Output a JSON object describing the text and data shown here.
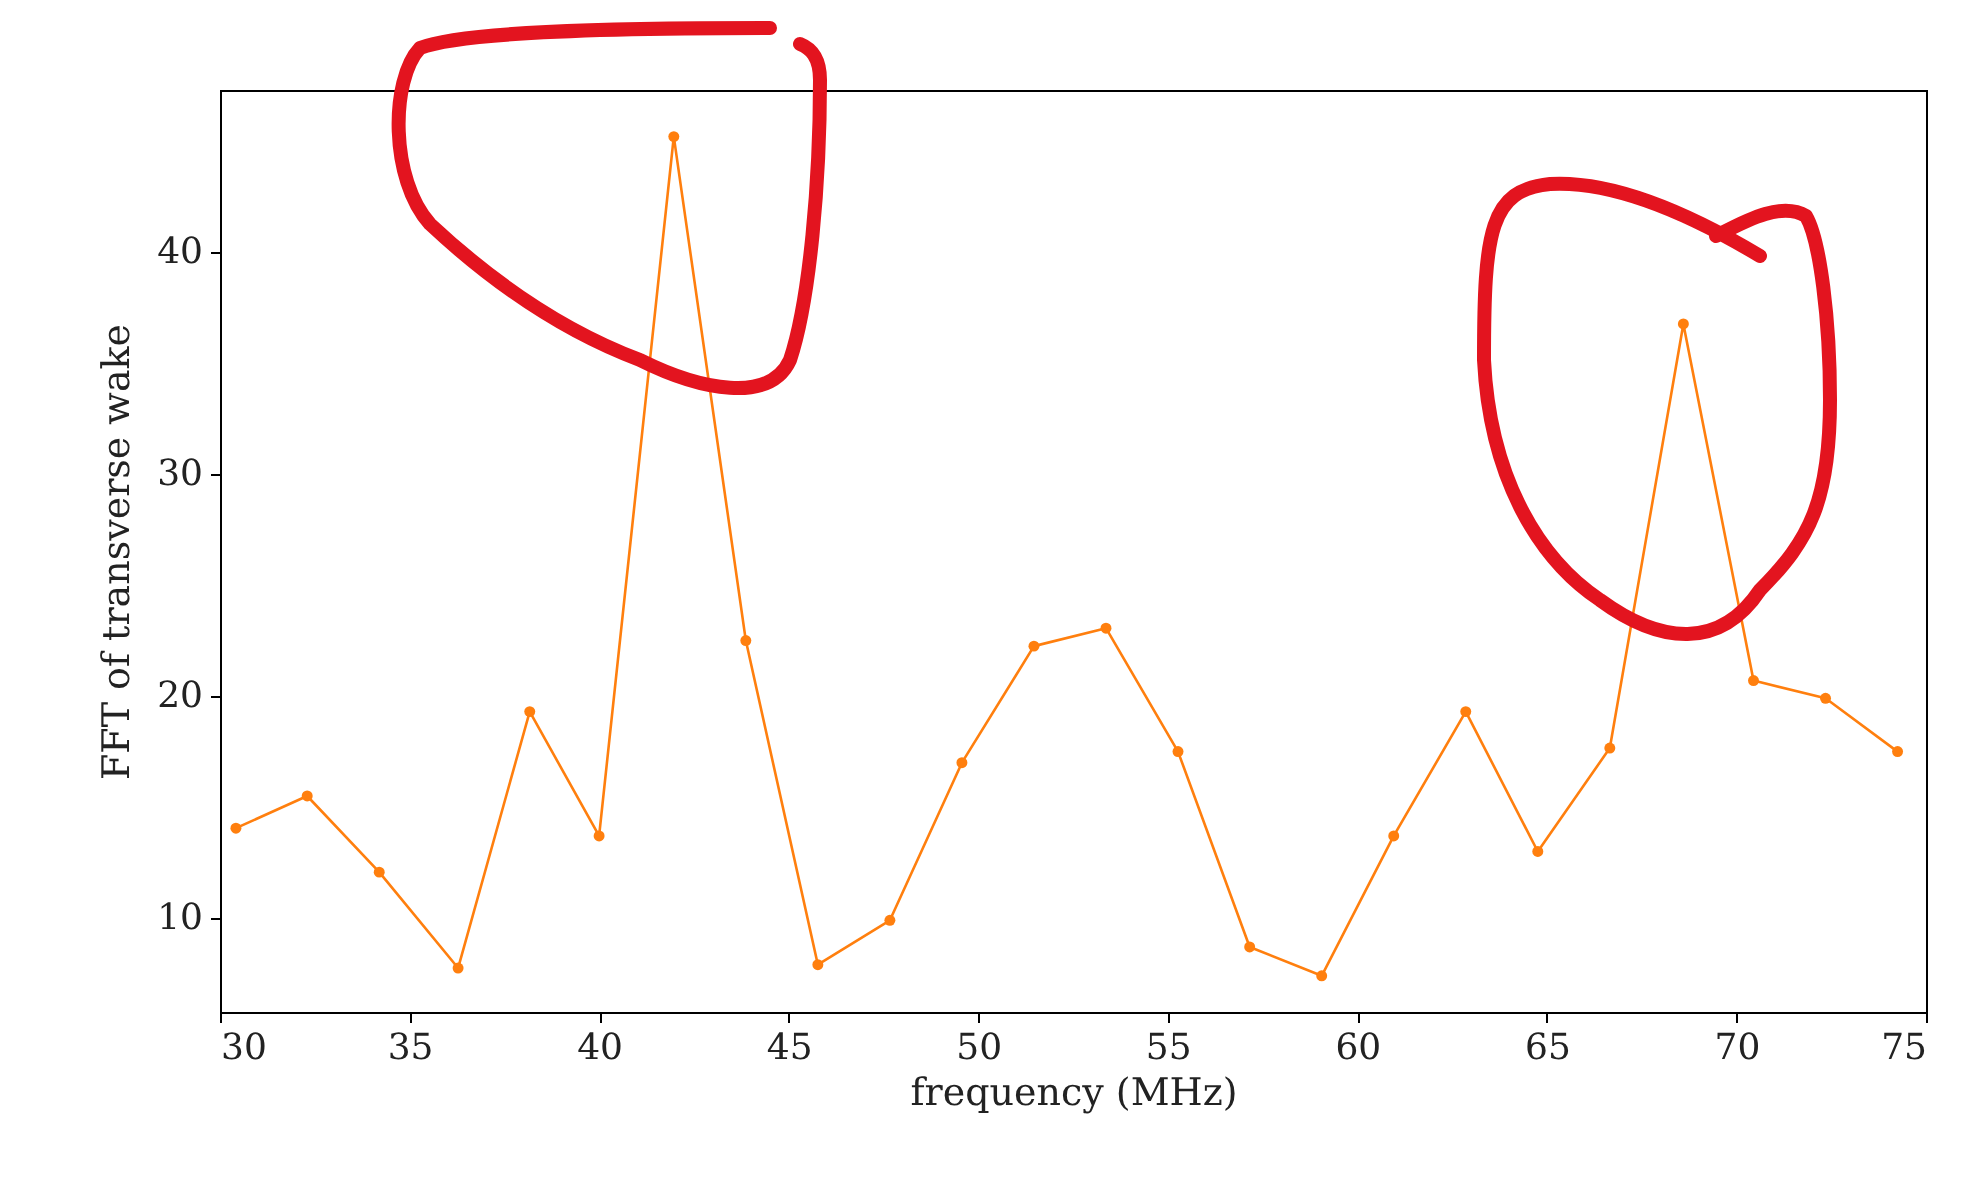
{
  "chart_data": {
    "type": "line",
    "xlabel": "frequency (MHz)",
    "ylabel": "FFT of transverse wake",
    "x": [
      30.42,
      32.3,
      34.2,
      36.28,
      38.17,
      40.0,
      41.97,
      43.87,
      45.77,
      47.67,
      49.57,
      51.47,
      53.37,
      55.27,
      57.16,
      59.06,
      60.96,
      62.86,
      64.76,
      66.66,
      68.6,
      70.45,
      72.35,
      74.25
    ],
    "series": [
      {
        "color": "#ff7f0e",
        "values": [
          14.05,
          15.5,
          12.07,
          7.75,
          19.3,
          13.7,
          45.2,
          22.5,
          7.9,
          9.9,
          17.0,
          22.25,
          23.06,
          17.5,
          8.7,
          7.4,
          13.7,
          19.3,
          13.0,
          17.66,
          36.76,
          20.7,
          19.9,
          17.5
        ]
      }
    ],
    "xlim": [
      30,
      75
    ],
    "xticks": [
      30,
      35,
      40,
      45,
      50,
      55,
      60,
      65,
      70,
      75
    ],
    "ylim": [
      5.77,
      47.3
    ],
    "yticks": [
      10,
      20,
      30,
      40
    ],
    "grid": false,
    "marker": "circle",
    "line_style": "solid"
  }
}
